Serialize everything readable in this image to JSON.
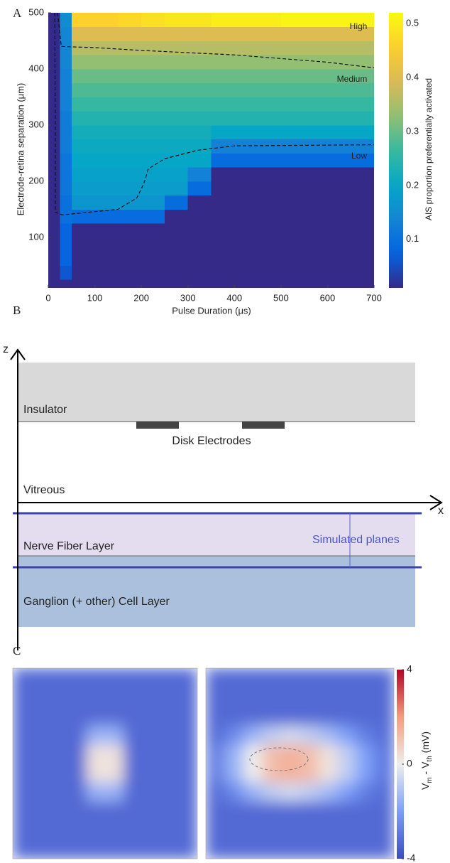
{
  "panel_labels": [
    "A",
    "B",
    "C"
  ],
  "chart_data": [
    {
      "type": "heatmap",
      "x_label": "Pulse Duration (μs)",
      "y_label": "Electrode-retina separation (μm)",
      "xlim": [
        0,
        700
      ],
      "xticks": [
        0,
        100,
        200,
        300,
        400,
        500,
        600,
        700
      ],
      "ylim": [
        10,
        500
      ],
      "yticks": [
        100,
        200,
        300,
        400,
        500
      ],
      "x_bins": [
        0,
        25,
        50,
        100,
        150,
        200,
        250,
        300,
        350,
        400,
        450,
        500,
        550,
        600,
        650,
        700
      ],
      "y_bins": [
        10,
        25,
        50,
        75,
        100,
        125,
        150,
        175,
        200,
        225,
        250,
        275,
        300,
        325,
        350,
        375,
        400,
        425,
        450,
        475,
        500
      ],
      "values": [
        [
          0.01,
          0.01,
          0.01,
          0.01,
          0.01,
          0.01,
          0.01,
          0.01,
          0.01,
          0.01,
          0.01,
          0.01,
          0.01,
          0.01,
          0.01
        ],
        [
          0.01,
          0.06,
          0.01,
          0.01,
          0.01,
          0.01,
          0.01,
          0.01,
          0.01,
          0.01,
          0.01,
          0.01,
          0.01,
          0.01,
          0.01
        ],
        [
          0.01,
          0.08,
          0.01,
          0.01,
          0.01,
          0.01,
          0.01,
          0.01,
          0.01,
          0.01,
          0.01,
          0.01,
          0.01,
          0.01,
          0.01
        ],
        [
          0.01,
          0.08,
          0.01,
          0.01,
          0.01,
          0.01,
          0.01,
          0.01,
          0.01,
          0.01,
          0.01,
          0.01,
          0.01,
          0.01,
          0.01
        ],
        [
          0.01,
          0.08,
          0.01,
          0.01,
          0.01,
          0.01,
          0.01,
          0.01,
          0.01,
          0.01,
          0.01,
          0.01,
          0.01,
          0.01,
          0.01
        ],
        [
          0.01,
          0.1,
          0.09,
          0.09,
          0.09,
          0.09,
          0.01,
          0.01,
          0.01,
          0.01,
          0.01,
          0.01,
          0.01,
          0.01,
          0.01
        ],
        [
          0.01,
          0.1,
          0.17,
          0.17,
          0.17,
          0.17,
          0.09,
          0.01,
          0.01,
          0.01,
          0.01,
          0.01,
          0.01,
          0.01,
          0.01
        ],
        [
          0.01,
          0.11,
          0.18,
          0.18,
          0.18,
          0.18,
          0.18,
          0.09,
          0.01,
          0.01,
          0.01,
          0.01,
          0.01,
          0.01,
          0.01
        ],
        [
          0.01,
          0.11,
          0.19,
          0.19,
          0.19,
          0.19,
          0.19,
          0.13,
          0.01,
          0.01,
          0.01,
          0.01,
          0.01,
          0.01,
          0.01
        ],
        [
          0.01,
          0.11,
          0.2,
          0.2,
          0.2,
          0.2,
          0.2,
          0.2,
          0.09,
          0.09,
          0.09,
          0.09,
          0.09,
          0.09,
          0.09
        ],
        [
          0.01,
          0.12,
          0.21,
          0.21,
          0.21,
          0.21,
          0.21,
          0.21,
          0.13,
          0.13,
          0.13,
          0.13,
          0.13,
          0.13,
          0.13
        ],
        [
          0.01,
          0.12,
          0.22,
          0.22,
          0.22,
          0.22,
          0.22,
          0.22,
          0.2,
          0.2,
          0.2,
          0.2,
          0.2,
          0.2,
          0.2
        ],
        [
          0.01,
          0.12,
          0.24,
          0.24,
          0.24,
          0.24,
          0.24,
          0.24,
          0.24,
          0.24,
          0.24,
          0.24,
          0.24,
          0.24,
          0.24
        ],
        [
          0.01,
          0.13,
          0.26,
          0.26,
          0.26,
          0.26,
          0.26,
          0.26,
          0.26,
          0.26,
          0.26,
          0.26,
          0.26,
          0.26,
          0.26
        ],
        [
          0.01,
          0.13,
          0.28,
          0.28,
          0.28,
          0.28,
          0.28,
          0.28,
          0.28,
          0.28,
          0.28,
          0.28,
          0.28,
          0.28,
          0.28
        ],
        [
          0.01,
          0.13,
          0.3,
          0.3,
          0.3,
          0.3,
          0.3,
          0.3,
          0.3,
          0.3,
          0.3,
          0.3,
          0.3,
          0.3,
          0.3
        ],
        [
          0.01,
          0.14,
          0.33,
          0.33,
          0.33,
          0.33,
          0.33,
          0.33,
          0.33,
          0.33,
          0.33,
          0.33,
          0.33,
          0.33,
          0.33
        ],
        [
          0.01,
          0.14,
          0.36,
          0.36,
          0.36,
          0.36,
          0.36,
          0.36,
          0.36,
          0.36,
          0.36,
          0.36,
          0.36,
          0.36,
          0.36
        ],
        [
          0.01,
          0.14,
          0.4,
          0.4,
          0.4,
          0.4,
          0.4,
          0.4,
          0.4,
          0.4,
          0.4,
          0.4,
          0.4,
          0.4,
          0.4
        ],
        [
          0.01,
          0.15,
          0.46,
          0.46,
          0.47,
          0.48,
          0.49,
          0.49,
          0.5,
          0.5,
          0.5,
          0.51,
          0.51,
          0.51,
          0.51
        ]
      ],
      "colormap": "parula",
      "clim": [
        0.01,
        0.52
      ],
      "colorbar_ticks": [
        0.1,
        0.2,
        0.3,
        0.4,
        0.5
      ],
      "colorbar_label": "AIS proportion preferentially activated",
      "contours": [
        {
          "x": [
            20,
            24,
            28,
            100,
            200,
            400,
            600,
            700
          ],
          "y": [
            500,
            470,
            440,
            438,
            433,
            425,
            412,
            402
          ]
        },
        {
          "x": [
            14,
            15,
            15,
            30,
            150,
            190,
            205,
            215,
            250,
            320,
            400,
            700
          ],
          "y": [
            500,
            300,
            145,
            140,
            150,
            170,
            195,
            222,
            240,
            255,
            263,
            265
          ]
        }
      ],
      "annotations": [
        "High",
        "Medium",
        "Low"
      ]
    },
    {
      "type": "heatmap",
      "colormap": "coolwarm",
      "clim": [
        -4,
        4
      ],
      "values": [
        [
          -3.3,
          -3.3,
          -3.3,
          -3.3,
          -3.3,
          -3.3,
          -3.3,
          -3.3,
          -3.3,
          -3.3
        ],
        [
          -3.3,
          -3.3,
          -3.3,
          -3.3,
          -3.3,
          -3.3,
          -3.3,
          -3.3,
          -3.3,
          -3.3
        ],
        [
          -3.3,
          -3.3,
          -3.3,
          -3.3,
          -3.3,
          -3.3,
          -3.3,
          -3.3,
          -3.3,
          -3.3
        ],
        [
          -3.3,
          -3.3,
          -3.3,
          -3.3,
          -1.5,
          -1.5,
          -3.3,
          -3.3,
          -3.3,
          -3.3
        ],
        [
          -3.3,
          -3.3,
          -3.3,
          -3.3,
          0.3,
          0.3,
          -3.3,
          -3.3,
          -3.3,
          -3.3
        ],
        [
          -3.3,
          -3.3,
          -3.3,
          -3.3,
          0.3,
          0.3,
          -3.3,
          -3.3,
          -3.3,
          -3.3
        ],
        [
          -3.3,
          -3.3,
          -3.3,
          -3.3,
          -1.5,
          -1.5,
          -3.3,
          -3.3,
          -3.3,
          -3.3
        ],
        [
          -3.3,
          -3.3,
          -3.3,
          -3.3,
          -3.3,
          -3.3,
          -3.3,
          -3.3,
          -3.3,
          -3.3
        ],
        [
          -3.3,
          -3.3,
          -3.3,
          -3.3,
          -3.3,
          -3.3,
          -3.3,
          -3.3,
          -3.3,
          -3.3
        ],
        [
          -3.3,
          -3.3,
          -3.3,
          -3.3,
          -3.3,
          -3.3,
          -3.3,
          -3.3,
          -3.3,
          -3.3
        ]
      ]
    },
    {
      "type": "heatmap",
      "colormap": "coolwarm",
      "clim": [
        -4,
        4
      ],
      "values": [
        [
          -3.3,
          -3.3,
          -3.3,
          -3.3,
          -3.3,
          -3.3,
          -3.3,
          -3.3,
          -3.3,
          -3.3
        ],
        [
          -3.3,
          -3.3,
          -3.3,
          -3.3,
          -3.3,
          -3.3,
          -3.3,
          -3.3,
          -3.3,
          -3.3
        ],
        [
          -3.3,
          -3.3,
          -3.3,
          -3.3,
          -3.3,
          -3.3,
          -3.3,
          -3.3,
          -3.3,
          -3.3
        ],
        [
          -3.2,
          -2.5,
          -1.5,
          -0.8,
          -0.5,
          -0.8,
          -1.3,
          -2,
          -2.8,
          -3.2
        ],
        [
          -2.8,
          -1.5,
          0,
          1.2,
          1.5,
          1.2,
          0.3,
          -0.8,
          -2,
          -3
        ],
        [
          -2.8,
          -1.5,
          0,
          1.2,
          1.5,
          1.2,
          0.3,
          -0.8,
          -2,
          -3
        ],
        [
          -3.2,
          -2.5,
          -1.5,
          -0.8,
          -0.5,
          -0.8,
          -1.3,
          -2,
          -2.8,
          -3.2
        ],
        [
          -3.3,
          -3.3,
          -3.3,
          -3.3,
          -3.3,
          -3.3,
          -3.3,
          -3.3,
          -3.3,
          -3.3
        ],
        [
          -3.3,
          -3.3,
          -3.3,
          -3.3,
          -3.3,
          -3.3,
          -3.3,
          -3.3,
          -3.3,
          -3.3
        ],
        [
          -3.3,
          -3.3,
          -3.3,
          -3.3,
          -3.3,
          -3.3,
          -3.3,
          -3.3,
          -3.3,
          -3.3
        ]
      ],
      "colorbar_ticks": [
        -4,
        0,
        4
      ],
      "colorbar_label_parts": [
        "V",
        "m",
        " - V",
        "th",
        " (mV)"
      ]
    }
  ],
  "diagram": {
    "axis_z": "z",
    "axis_x": "x",
    "insulator": "Insulator",
    "electrodes": "Disk Electrodes",
    "vitreous": "Vitreous",
    "nerve_fiber_layer": "Nerve Fiber Layer",
    "simulated_planes": "Simulated planes",
    "ganglion_layer": "Ganglion (+ other) Cell Layer"
  }
}
